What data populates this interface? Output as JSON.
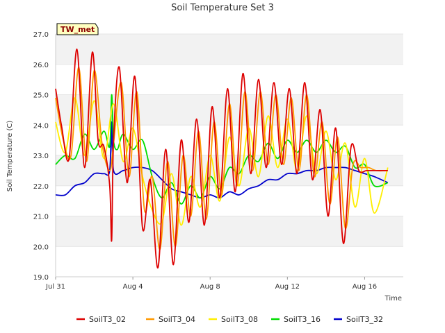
{
  "chart_data": {
    "type": "line",
    "title": "Soil Temperature Set 3",
    "xlabel": "Time",
    "ylabel": "Soil Temperature (C)",
    "ylim": [
      19.0,
      27.0
    ],
    "yticks": [
      "19.0",
      "20.0",
      "21.0",
      "22.0",
      "23.0",
      "24.0",
      "25.0",
      "26.0",
      "27.0"
    ],
    "xlim_days": [
      0,
      18
    ],
    "xticks": [
      {
        "label": "Jul 31",
        "day": 0
      },
      {
        "label": "Aug 4",
        "day": 4
      },
      {
        "label": "Aug 8",
        "day": 8
      },
      {
        "label": "Aug 12",
        "day": 12
      },
      {
        "label": "Aug 16",
        "day": 16
      }
    ],
    "grid": "horizontal bands",
    "legend_position": "bottom",
    "annotation": "TW_met",
    "series": [
      {
        "name": "SoilT3_02",
        "color": "#dd0000",
        "x": [
          0.0,
          0.3,
          0.7,
          1.1,
          1.5,
          1.9,
          2.2,
          2.5,
          2.8,
          2.9,
          3.0,
          3.3,
          3.7,
          4.1,
          4.5,
          4.9,
          5.3,
          5.7,
          6.1,
          6.5,
          6.9,
          7.3,
          7.7,
          8.1,
          8.5,
          8.9,
          9.3,
          9.7,
          10.1,
          10.5,
          10.9,
          11.3,
          11.7,
          12.1,
          12.5,
          12.9,
          13.3,
          13.7,
          14.1,
          14.5,
          14.9,
          15.3,
          15.7,
          16.1,
          16.5,
          16.9,
          17.2
        ],
        "values": [
          25.2,
          24.0,
          22.9,
          26.5,
          22.6,
          26.4,
          23.5,
          23.3,
          22.0,
          20.2,
          23.5,
          25.9,
          22.1,
          25.6,
          20.6,
          22.2,
          19.3,
          23.2,
          19.4,
          23.5,
          20.8,
          24.2,
          20.7,
          24.6,
          21.6,
          25.2,
          21.8,
          25.7,
          22.4,
          25.5,
          22.6,
          25.4,
          22.7,
          25.2,
          22.4,
          25.4,
          22.2,
          24.5,
          21.0,
          23.9,
          20.1,
          23.3,
          22.5,
          22.5,
          22.5,
          22.5,
          22.5
        ]
      },
      {
        "name": "SoilT3_04",
        "color": "#ff9900",
        "x": [
          0.0,
          0.4,
          0.8,
          1.2,
          1.6,
          2.0,
          2.4,
          2.8,
          3.0,
          3.4,
          3.8,
          4.2,
          4.6,
          5.0,
          5.4,
          5.8,
          6.2,
          6.6,
          7.0,
          7.4,
          7.8,
          8.2,
          8.6,
          9.0,
          9.4,
          9.8,
          10.2,
          10.6,
          11.0,
          11.4,
          11.8,
          12.2,
          12.6,
          13.0,
          13.4,
          13.8,
          14.2,
          14.6,
          15.0,
          15.4,
          15.8,
          16.2,
          16.6,
          17.2
        ],
        "values": [
          24.9,
          23.5,
          23.0,
          25.9,
          22.8,
          25.8,
          23.4,
          22.5,
          23.4,
          25.4,
          22.3,
          25.1,
          21.2,
          22.3,
          19.9,
          22.8,
          20.0,
          23.0,
          21.0,
          23.8,
          20.9,
          24.1,
          21.7,
          24.7,
          22.0,
          25.1,
          22.5,
          25.1,
          22.7,
          25.0,
          22.7,
          24.9,
          22.5,
          25.0,
          22.3,
          24.1,
          21.4,
          23.6,
          20.6,
          22.7,
          22.6,
          22.6,
          22.5,
          22.5
        ]
      },
      {
        "name": "SoilT3_08",
        "color": "#ffee00",
        "x": [
          0.0,
          0.5,
          1.0,
          1.5,
          2.0,
          2.5,
          3.0,
          3.5,
          4.0,
          4.5,
          5.0,
          5.5,
          6.0,
          6.5,
          7.0,
          7.5,
          8.0,
          8.5,
          9.0,
          9.5,
          10.0,
          10.5,
          11.0,
          11.5,
          12.0,
          12.5,
          13.0,
          13.5,
          14.0,
          14.5,
          15.0,
          15.5,
          16.0,
          16.5,
          17.2
        ],
        "values": [
          24.1,
          23.1,
          24.9,
          23.0,
          24.8,
          22.9,
          24.7,
          22.8,
          23.9,
          22.3,
          21.2,
          20.8,
          22.4,
          20.7,
          22.3,
          21.3,
          23.0,
          21.5,
          23.6,
          22.0,
          23.9,
          22.3,
          24.3,
          22.6,
          24.2,
          22.5,
          24.3,
          22.4,
          23.8,
          22.2,
          23.4,
          21.3,
          22.9,
          21.1,
          22.6
        ]
      },
      {
        "name": "SoilT3_16",
        "color": "#00dd00",
        "x": [
          0.0,
          0.5,
          1.0,
          1.5,
          2.0,
          2.5,
          2.8,
          2.9,
          3.0,
          3.2,
          3.5,
          4.0,
          4.5,
          5.0,
          5.5,
          6.0,
          6.5,
          7.0,
          7.5,
          8.0,
          8.5,
          9.0,
          9.5,
          10.0,
          10.5,
          11.0,
          11.5,
          12.0,
          12.5,
          13.0,
          13.5,
          14.0,
          14.5,
          15.0,
          15.5,
          16.0,
          16.5,
          17.2
        ],
        "values": [
          22.7,
          23.0,
          22.9,
          23.7,
          23.2,
          23.8,
          23.3,
          25.0,
          23.5,
          23.2,
          23.7,
          23.2,
          23.5,
          22.3,
          21.6,
          22.1,
          21.4,
          22.0,
          21.6,
          22.3,
          21.9,
          22.6,
          22.4,
          23.0,
          22.8,
          23.4,
          22.9,
          23.5,
          23.1,
          23.5,
          23.1,
          23.5,
          23.1,
          23.3,
          22.6,
          22.7,
          22.0,
          22.1
        ]
      },
      {
        "name": "SoilT3_32",
        "color": "#0000cc",
        "x": [
          0.0,
          0.5,
          1.0,
          1.5,
          2.0,
          2.5,
          2.8,
          2.9,
          3.0,
          3.5,
          4.0,
          4.5,
          5.0,
          5.5,
          6.0,
          6.5,
          7.0,
          7.5,
          8.0,
          8.5,
          9.0,
          9.5,
          10.0,
          10.5,
          11.0,
          11.5,
          12.0,
          12.5,
          13.0,
          13.5,
          14.0,
          14.5,
          15.0,
          15.5,
          16.0,
          16.5,
          17.2
        ],
        "values": [
          21.7,
          21.7,
          22.0,
          22.1,
          22.4,
          22.4,
          22.5,
          24.1,
          22.5,
          22.5,
          22.6,
          22.6,
          22.5,
          22.2,
          21.9,
          21.8,
          21.7,
          21.6,
          21.7,
          21.6,
          21.8,
          21.7,
          21.9,
          22.0,
          22.2,
          22.2,
          22.4,
          22.4,
          22.5,
          22.5,
          22.6,
          22.6,
          22.6,
          22.5,
          22.4,
          22.3,
          22.1
        ]
      }
    ]
  }
}
